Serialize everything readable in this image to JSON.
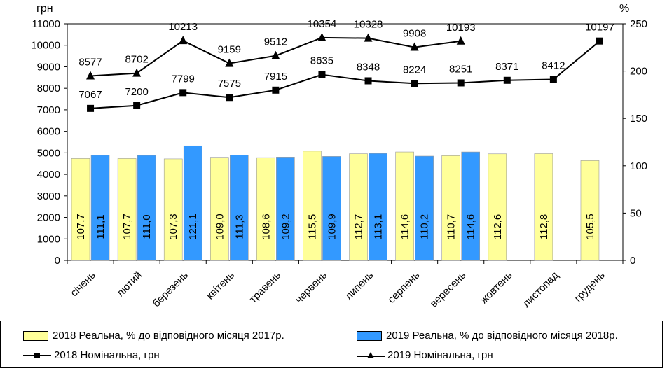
{
  "chart_data": {
    "type": "bar",
    "left_axis_label": "грн",
    "right_axis_label": "%",
    "left_ylim": [
      0,
      11000
    ],
    "left_ticks": [
      "0",
      "1000",
      "2000",
      "3000",
      "4000",
      "5000",
      "6000",
      "7000",
      "8000",
      "9000",
      "10000",
      "11000"
    ],
    "right_ylim": [
      0,
      250
    ],
    "right_ticks": [
      "0",
      "50",
      "100",
      "150",
      "200",
      "250"
    ],
    "categories": [
      "січень",
      "лютий",
      "березень",
      "квітень",
      "травень",
      "червень",
      "липень",
      "серпень",
      "вересень",
      "жовтень",
      "листопад",
      "грудень"
    ],
    "bar_series": [
      {
        "name": "2018 Реальна, % до відповідного місяця 2017р.",
        "color": "#ffff99",
        "values": [
          107.7,
          107.7,
          107.3,
          109.0,
          108.6,
          115.5,
          112.7,
          114.6,
          110.7,
          112.6,
          112.8,
          105.5
        ],
        "labels": [
          "107,7",
          "107,7",
          "107,3",
          "109,0",
          "108,6",
          "115,5",
          "112,7",
          "114,6",
          "110,7",
          "112,6",
          "112,8",
          "105,5"
        ]
      },
      {
        "name": "2019 Реальна, % до відповідного місяця 2018р.",
        "color": "#3399ff",
        "values": [
          111.1,
          111.0,
          121.1,
          111.3,
          109.2,
          109.9,
          113.1,
          110.2,
          114.6,
          null,
          null,
          null
        ],
        "labels": [
          "111,1",
          "111,0",
          "121,1",
          "111,3",
          "109,2",
          "109,9",
          "113,1",
          "110,2",
          "114,6",
          "",
          "",
          ""
        ]
      }
    ],
    "line_series": [
      {
        "name": "2018 Номінальна, грн",
        "marker": "square",
        "values": [
          7067,
          7200,
          7799,
          7575,
          7915,
          8635,
          8348,
          8224,
          8251,
          8371,
          8412,
          10197
        ],
        "labels": [
          "7067",
          "7200",
          "7799",
          "7575",
          "7915",
          "8635",
          "8348",
          "8224",
          "8251",
          "8371",
          "8412",
          "10197"
        ]
      },
      {
        "name": "2019 Номінальна, грн",
        "marker": "triangle",
        "values": [
          8577,
          8702,
          10213,
          9159,
          9512,
          10354,
          10328,
          9908,
          10193,
          null,
          null,
          null
        ],
        "labels": [
          "8577",
          "8702",
          "10213",
          "9159",
          "9512",
          "10354",
          "10328",
          "9908",
          "10193",
          "",
          "",
          ""
        ]
      }
    ]
  },
  "legend": {
    "item1": "2018 Реальна, % до відповідного місяця 2017р.",
    "item2": "2019 Реальна, % до відповідного місяця 2018р.",
    "item3": "2018 Номінальна, грн",
    "item4": "2019 Номінальна, грн"
  }
}
